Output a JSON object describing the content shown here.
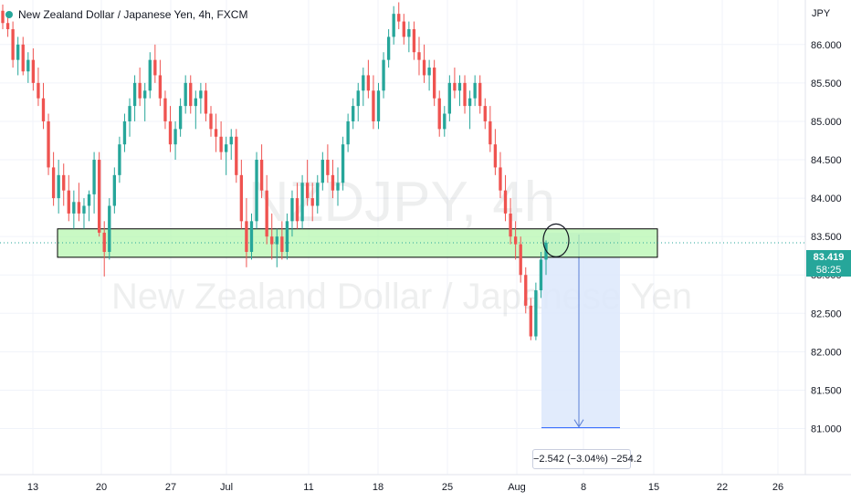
{
  "header": {
    "title": "New Zealand Dollar / Japanese Yen, 4h, FXCM",
    "currency": "JPY"
  },
  "watermark": {
    "ticker": "NZDJPY, 4h",
    "description": "New Zealand Dollar / Japanese Yen"
  },
  "last_price": {
    "value": "83.419",
    "countdown": "58:25"
  },
  "measurement": {
    "label": "−2.542 (−3.04%) −254.2",
    "from_price": 83.55,
    "to_price": 81.01
  },
  "colors": {
    "up": "#26a69a",
    "down": "#ef5350",
    "zone_fill": "#b7f7b0",
    "zone_border": "#000000",
    "measure_fill": "#dce7fb",
    "measure_line": "#2962ff",
    "last_price_line": "#26a69a"
  },
  "chart_data": {
    "type": "candlestick",
    "symbol": "NZDJPY",
    "interval": "4h",
    "source": "FXCM",
    "ylim": [
      80.4,
      86.58
    ],
    "y_ticks": [
      "86.000",
      "85.500",
      "85.000",
      "84.500",
      "84.000",
      "83.500",
      "83.000",
      "82.500",
      "82.000",
      "81.500",
      "81.000"
    ],
    "x_ticks": [
      "13",
      "20",
      "27",
      "Jul",
      "11",
      "18",
      "25",
      "Aug",
      "8",
      "15",
      "22",
      "26"
    ],
    "support_zone": [
      83.23,
      83.6
    ],
    "ohlc": [
      [
        86.44,
        86.52,
        86.2,
        86.28
      ],
      [
        86.28,
        86.42,
        86.1,
        86.2
      ],
      [
        86.2,
        86.3,
        85.7,
        85.8
      ],
      [
        85.8,
        86.1,
        85.6,
        86.0
      ],
      [
        86.0,
        86.1,
        85.6,
        85.65
      ],
      [
        85.65,
        85.9,
        85.5,
        85.8
      ],
      [
        85.8,
        85.95,
        85.4,
        85.5
      ],
      [
        85.5,
        85.7,
        85.2,
        85.3
      ],
      [
        85.3,
        85.5,
        84.9,
        85.0
      ],
      [
        85.0,
        85.1,
        84.3,
        84.4
      ],
      [
        84.4,
        84.6,
        83.9,
        84.0
      ],
      [
        84.0,
        84.5,
        83.8,
        84.3
      ],
      [
        84.3,
        84.45,
        83.9,
        84.1
      ],
      [
        84.1,
        84.3,
        83.7,
        83.8
      ],
      [
        83.8,
        84.1,
        83.6,
        83.95
      ],
      [
        83.95,
        84.2,
        83.7,
        83.8
      ],
      [
        83.8,
        84.0,
        83.6,
        83.9
      ],
      [
        83.9,
        84.1,
        83.7,
        84.05
      ],
      [
        84.05,
        84.6,
        83.8,
        84.5
      ],
      [
        84.5,
        84.6,
        83.5,
        83.55
      ],
      [
        83.55,
        83.7,
        82.98,
        83.3
      ],
      [
        83.3,
        84.0,
        83.2,
        83.9
      ],
      [
        83.9,
        84.4,
        83.8,
        84.3
      ],
      [
        84.3,
        84.8,
        84.2,
        84.7
      ],
      [
        84.7,
        85.1,
        84.6,
        85.0
      ],
      [
        85.0,
        85.3,
        84.8,
        85.2
      ],
      [
        85.2,
        85.6,
        85.0,
        85.5
      ],
      [
        85.5,
        85.7,
        85.2,
        85.3
      ],
      [
        85.3,
        85.5,
        85.0,
        85.4
      ],
      [
        85.4,
        85.9,
        85.3,
        85.8
      ],
      [
        85.8,
        86.0,
        85.5,
        85.6
      ],
      [
        85.6,
        85.8,
        85.2,
        85.3
      ],
      [
        85.3,
        85.4,
        84.9,
        85.0
      ],
      [
        85.0,
        85.2,
        84.6,
        84.7
      ],
      [
        84.7,
        85.0,
        84.5,
        84.9
      ],
      [
        84.9,
        85.3,
        84.8,
        85.2
      ],
      [
        85.2,
        85.6,
        85.1,
        85.5
      ],
      [
        85.5,
        85.6,
        85.1,
        85.2
      ],
      [
        85.2,
        85.4,
        84.9,
        85.3
      ],
      [
        85.3,
        85.5,
        85.1,
        85.4
      ],
      [
        85.4,
        85.5,
        85.0,
        85.1
      ],
      [
        85.1,
        85.2,
        84.8,
        84.9
      ],
      [
        84.9,
        85.1,
        84.6,
        84.8
      ],
      [
        84.8,
        85.0,
        84.5,
        84.6
      ],
      [
        84.6,
        84.8,
        84.3,
        84.7
      ],
      [
        84.7,
        84.9,
        84.5,
        84.8
      ],
      [
        84.8,
        84.9,
        84.2,
        84.3
      ],
      [
        84.3,
        84.5,
        83.6,
        83.7
      ],
      [
        83.7,
        84.0,
        83.1,
        83.3
      ],
      [
        83.3,
        83.8,
        83.2,
        83.7
      ],
      [
        83.7,
        84.6,
        83.6,
        84.5
      ],
      [
        84.5,
        84.7,
        84.0,
        84.1
      ],
      [
        84.1,
        84.3,
        83.4,
        83.5
      ],
      [
        83.5,
        83.8,
        83.2,
        83.4
      ],
      [
        83.4,
        83.6,
        83.1,
        83.5
      ],
      [
        83.5,
        83.7,
        83.2,
        83.3
      ],
      [
        83.3,
        83.8,
        83.2,
        83.7
      ],
      [
        83.7,
        84.1,
        83.5,
        84.0
      ],
      [
        84.0,
        84.2,
        83.6,
        83.7
      ],
      [
        83.7,
        84.3,
        83.6,
        84.2
      ],
      [
        84.2,
        84.5,
        83.9,
        84.0
      ],
      [
        84.0,
        84.2,
        83.7,
        83.9
      ],
      [
        83.9,
        84.3,
        83.8,
        84.2
      ],
      [
        84.2,
        84.6,
        84.1,
        84.5
      ],
      [
        84.5,
        84.7,
        84.2,
        84.3
      ],
      [
        84.3,
        84.5,
        84.0,
        84.1
      ],
      [
        84.1,
        84.4,
        83.9,
        84.2
      ],
      [
        84.2,
        84.8,
        84.1,
        84.7
      ],
      [
        84.7,
        85.1,
        84.6,
        85.0
      ],
      [
        85.0,
        85.3,
        84.9,
        85.2
      ],
      [
        85.2,
        85.5,
        85.0,
        85.4
      ],
      [
        85.4,
        85.7,
        85.2,
        85.6
      ],
      [
        85.6,
        85.8,
        85.3,
        85.4
      ],
      [
        85.4,
        85.6,
        84.9,
        85.0
      ],
      [
        85.0,
        85.5,
        84.9,
        85.4
      ],
      [
        85.4,
        85.9,
        85.3,
        85.8
      ],
      [
        85.8,
        86.2,
        85.7,
        86.1
      ],
      [
        86.1,
        86.5,
        86.0,
        86.4
      ],
      [
        86.4,
        86.55,
        86.2,
        86.3
      ],
      [
        86.3,
        86.4,
        86.0,
        86.1
      ],
      [
        86.1,
        86.3,
        85.9,
        86.2
      ],
      [
        86.2,
        86.3,
        85.8,
        85.9
      ],
      [
        85.9,
        86.1,
        85.6,
        85.8
      ],
      [
        85.8,
        86.0,
        85.5,
        85.6
      ],
      [
        85.6,
        85.8,
        85.4,
        85.7
      ],
      [
        85.7,
        85.8,
        85.2,
        85.3
      ],
      [
        85.3,
        85.4,
        84.8,
        84.9
      ],
      [
        84.9,
        85.2,
        84.8,
        85.1
      ],
      [
        85.1,
        85.6,
        85.0,
        85.5
      ],
      [
        85.5,
        85.7,
        85.3,
        85.4
      ],
      [
        85.4,
        85.6,
        85.2,
        85.5
      ],
      [
        85.5,
        85.6,
        85.1,
        85.2
      ],
      [
        85.2,
        85.4,
        84.9,
        85.3
      ],
      [
        85.3,
        85.6,
        85.2,
        85.5
      ],
      [
        85.5,
        85.6,
        85.1,
        85.2
      ],
      [
        85.2,
        85.3,
        84.9,
        85.0
      ],
      [
        85.0,
        85.2,
        84.6,
        84.7
      ],
      [
        84.7,
        84.9,
        84.3,
        84.4
      ],
      [
        84.4,
        84.6,
        84.0,
        84.1
      ],
      [
        84.1,
        84.3,
        83.7,
        83.8
      ],
      [
        83.8,
        84.0,
        83.4,
        83.5
      ],
      [
        83.5,
        83.7,
        83.2,
        83.4
      ],
      [
        83.4,
        83.5,
        82.9,
        83.0
      ],
      [
        83.0,
        83.1,
        82.5,
        82.6
      ],
      [
        82.6,
        82.7,
        82.15,
        82.2
      ],
      [
        82.2,
        82.9,
        82.15,
        82.8
      ],
      [
        82.8,
        83.3,
        82.7,
        83.2
      ],
      [
        83.2,
        83.45,
        83.0,
        83.42
      ]
    ]
  }
}
